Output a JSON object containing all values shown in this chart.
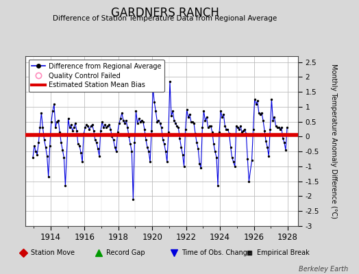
{
  "title": "GARDNERS RANCH",
  "subtitle": "Difference of Station Temperature Data from Regional Average",
  "ylabel": "Monthly Temperature Anomaly Difference (°C)",
  "xlabel_ticklabels": [
    "1914",
    "1916",
    "1918",
    "1920",
    "1922",
    "1924",
    "1926",
    "1928"
  ],
  "xlim": [
    1912.5,
    1928.6
  ],
  "ylim": [
    -3.0,
    2.7
  ],
  "yticks": [
    -3,
    -2.5,
    -2,
    -1.5,
    -1,
    -0.5,
    0,
    0.5,
    1,
    1.5,
    2,
    2.5
  ],
  "ytick_labels": [
    "-3",
    "-2.5",
    "-2",
    "-1.5",
    "-1",
    "-0.5",
    "0",
    "0.5",
    "1",
    "1.5",
    "2",
    "2.5"
  ],
  "mean_bias": 0.05,
  "bias_color": "#dd0000",
  "line_color": "#0000dd",
  "dot_color": "#000000",
  "background_color": "#d8d8d8",
  "plot_bg_color": "#ffffff",
  "watermark": "Berkeley Earth",
  "time_series": [
    [
      1912.958,
      -0.7
    ],
    [
      1913.042,
      -0.3
    ],
    [
      1913.125,
      -0.5
    ],
    [
      1913.208,
      -0.6
    ],
    [
      1913.292,
      -0.2
    ],
    [
      1913.375,
      0.3
    ],
    [
      1913.458,
      0.8
    ],
    [
      1913.542,
      0.3
    ],
    [
      1913.625,
      -0.1
    ],
    [
      1913.708,
      -0.35
    ],
    [
      1913.792,
      -0.65
    ],
    [
      1913.875,
      -1.35
    ],
    [
      1913.958,
      -0.3
    ],
    [
      1914.042,
      0.5
    ],
    [
      1914.125,
      0.85
    ],
    [
      1914.208,
      1.1
    ],
    [
      1914.292,
      0.3
    ],
    [
      1914.375,
      0.5
    ],
    [
      1914.458,
      0.55
    ],
    [
      1914.542,
      0.15
    ],
    [
      1914.625,
      -0.2
    ],
    [
      1914.708,
      -0.45
    ],
    [
      1914.792,
      -0.7
    ],
    [
      1914.875,
      -1.65
    ],
    [
      1915.042,
      0.6
    ],
    [
      1915.125,
      0.3
    ],
    [
      1915.208,
      0.4
    ],
    [
      1915.292,
      0.2
    ],
    [
      1915.375,
      0.3
    ],
    [
      1915.458,
      0.45
    ],
    [
      1915.542,
      0.2
    ],
    [
      1915.625,
      -0.25
    ],
    [
      1915.708,
      -0.3
    ],
    [
      1915.792,
      -0.55
    ],
    [
      1915.875,
      -0.85
    ],
    [
      1915.958,
      0.1
    ],
    [
      1916.042,
      0.3
    ],
    [
      1916.125,
      0.4
    ],
    [
      1916.208,
      0.35
    ],
    [
      1916.292,
      0.25
    ],
    [
      1916.375,
      0.35
    ],
    [
      1916.458,
      0.4
    ],
    [
      1916.542,
      0.2
    ],
    [
      1916.625,
      -0.1
    ],
    [
      1916.708,
      -0.2
    ],
    [
      1916.792,
      -0.4
    ],
    [
      1916.875,
      -0.65
    ],
    [
      1916.958,
      0.2
    ],
    [
      1917.042,
      0.5
    ],
    [
      1917.125,
      0.3
    ],
    [
      1917.208,
      0.4
    ],
    [
      1917.292,
      0.3
    ],
    [
      1917.375,
      0.35
    ],
    [
      1917.458,
      0.4
    ],
    [
      1917.542,
      0.25
    ],
    [
      1917.625,
      0.0
    ],
    [
      1917.708,
      -0.1
    ],
    [
      1917.792,
      -0.35
    ],
    [
      1917.875,
      -0.5
    ],
    [
      1917.958,
      0.15
    ],
    [
      1918.042,
      0.45
    ],
    [
      1918.125,
      0.6
    ],
    [
      1918.208,
      0.8
    ],
    [
      1918.292,
      0.55
    ],
    [
      1918.375,
      0.45
    ],
    [
      1918.458,
      0.55
    ],
    [
      1918.542,
      0.3
    ],
    [
      1918.625,
      0.0
    ],
    [
      1918.708,
      -0.25
    ],
    [
      1918.792,
      -0.5
    ],
    [
      1918.875,
      -2.1
    ],
    [
      1918.958,
      -0.2
    ],
    [
      1919.042,
      0.85
    ],
    [
      1919.125,
      0.45
    ],
    [
      1919.208,
      0.6
    ],
    [
      1919.292,
      0.5
    ],
    [
      1919.375,
      0.55
    ],
    [
      1919.458,
      0.5
    ],
    [
      1919.542,
      0.25
    ],
    [
      1919.625,
      -0.1
    ],
    [
      1919.708,
      -0.35
    ],
    [
      1919.792,
      -0.5
    ],
    [
      1919.875,
      -0.85
    ],
    [
      1919.958,
      0.2
    ],
    [
      1920.042,
      1.65
    ],
    [
      1920.125,
      1.15
    ],
    [
      1920.208,
      0.85
    ],
    [
      1920.292,
      0.5
    ],
    [
      1920.375,
      0.55
    ],
    [
      1920.458,
      0.45
    ],
    [
      1920.542,
      0.3
    ],
    [
      1920.625,
      -0.1
    ],
    [
      1920.708,
      -0.25
    ],
    [
      1920.792,
      -0.5
    ],
    [
      1920.875,
      -0.85
    ],
    [
      1920.958,
      0.15
    ],
    [
      1921.042,
      1.85
    ],
    [
      1921.125,
      0.7
    ],
    [
      1921.208,
      0.85
    ],
    [
      1921.292,
      0.55
    ],
    [
      1921.375,
      0.45
    ],
    [
      1921.458,
      0.35
    ],
    [
      1921.542,
      0.3
    ],
    [
      1921.625,
      -0.05
    ],
    [
      1921.708,
      -0.35
    ],
    [
      1921.792,
      -0.6
    ],
    [
      1921.875,
      -1.0
    ],
    [
      1921.958,
      0.25
    ],
    [
      1922.042,
      0.9
    ],
    [
      1922.125,
      0.65
    ],
    [
      1922.208,
      0.75
    ],
    [
      1922.292,
      0.5
    ],
    [
      1922.375,
      0.5
    ],
    [
      1922.458,
      0.45
    ],
    [
      1922.542,
      0.1
    ],
    [
      1922.625,
      -0.2
    ],
    [
      1922.708,
      -0.4
    ],
    [
      1922.792,
      -0.9
    ],
    [
      1922.875,
      -1.05
    ],
    [
      1922.958,
      0.3
    ],
    [
      1923.042,
      0.85
    ],
    [
      1923.125,
      0.55
    ],
    [
      1923.208,
      0.65
    ],
    [
      1923.292,
      0.3
    ],
    [
      1923.375,
      0.35
    ],
    [
      1923.458,
      0.35
    ],
    [
      1923.542,
      0.15
    ],
    [
      1923.625,
      -0.25
    ],
    [
      1923.708,
      -0.5
    ],
    [
      1923.792,
      -0.7
    ],
    [
      1923.875,
      -1.65
    ],
    [
      1923.958,
      0.15
    ],
    [
      1924.042,
      0.85
    ],
    [
      1924.125,
      0.65
    ],
    [
      1924.208,
      0.75
    ],
    [
      1924.292,
      0.35
    ],
    [
      1924.375,
      0.25
    ],
    [
      1924.458,
      0.25
    ],
    [
      1924.542,
      0.1
    ],
    [
      1924.625,
      -0.35
    ],
    [
      1924.708,
      -0.7
    ],
    [
      1924.792,
      -0.85
    ],
    [
      1924.875,
      -1.0
    ],
    [
      1924.958,
      0.35
    ],
    [
      1925.042,
      0.3
    ],
    [
      1925.125,
      0.25
    ],
    [
      1925.208,
      0.35
    ],
    [
      1925.292,
      0.15
    ],
    [
      1925.375,
      0.2
    ],
    [
      1925.458,
      0.25
    ],
    [
      1925.542,
      0.1
    ],
    [
      1925.625,
      -0.75
    ],
    [
      1925.708,
      -1.5
    ],
    [
      1925.875,
      -0.8
    ],
    [
      1925.958,
      0.25
    ],
    [
      1926.042,
      1.25
    ],
    [
      1926.125,
      1.1
    ],
    [
      1926.208,
      1.2
    ],
    [
      1926.292,
      0.8
    ],
    [
      1926.375,
      0.75
    ],
    [
      1926.458,
      0.8
    ],
    [
      1926.542,
      0.55
    ],
    [
      1926.625,
      0.2
    ],
    [
      1926.708,
      -0.15
    ],
    [
      1926.792,
      -0.35
    ],
    [
      1926.875,
      -0.65
    ],
    [
      1926.958,
      0.25
    ],
    [
      1927.042,
      1.25
    ],
    [
      1927.125,
      0.55
    ],
    [
      1927.208,
      0.65
    ],
    [
      1927.292,
      0.35
    ],
    [
      1927.375,
      0.3
    ],
    [
      1927.458,
      0.3
    ],
    [
      1927.542,
      0.25
    ],
    [
      1927.625,
      0.3
    ],
    [
      1927.708,
      -0.05
    ],
    [
      1927.792,
      -0.2
    ],
    [
      1927.875,
      -0.45
    ],
    [
      1927.958,
      0.3
    ]
  ]
}
